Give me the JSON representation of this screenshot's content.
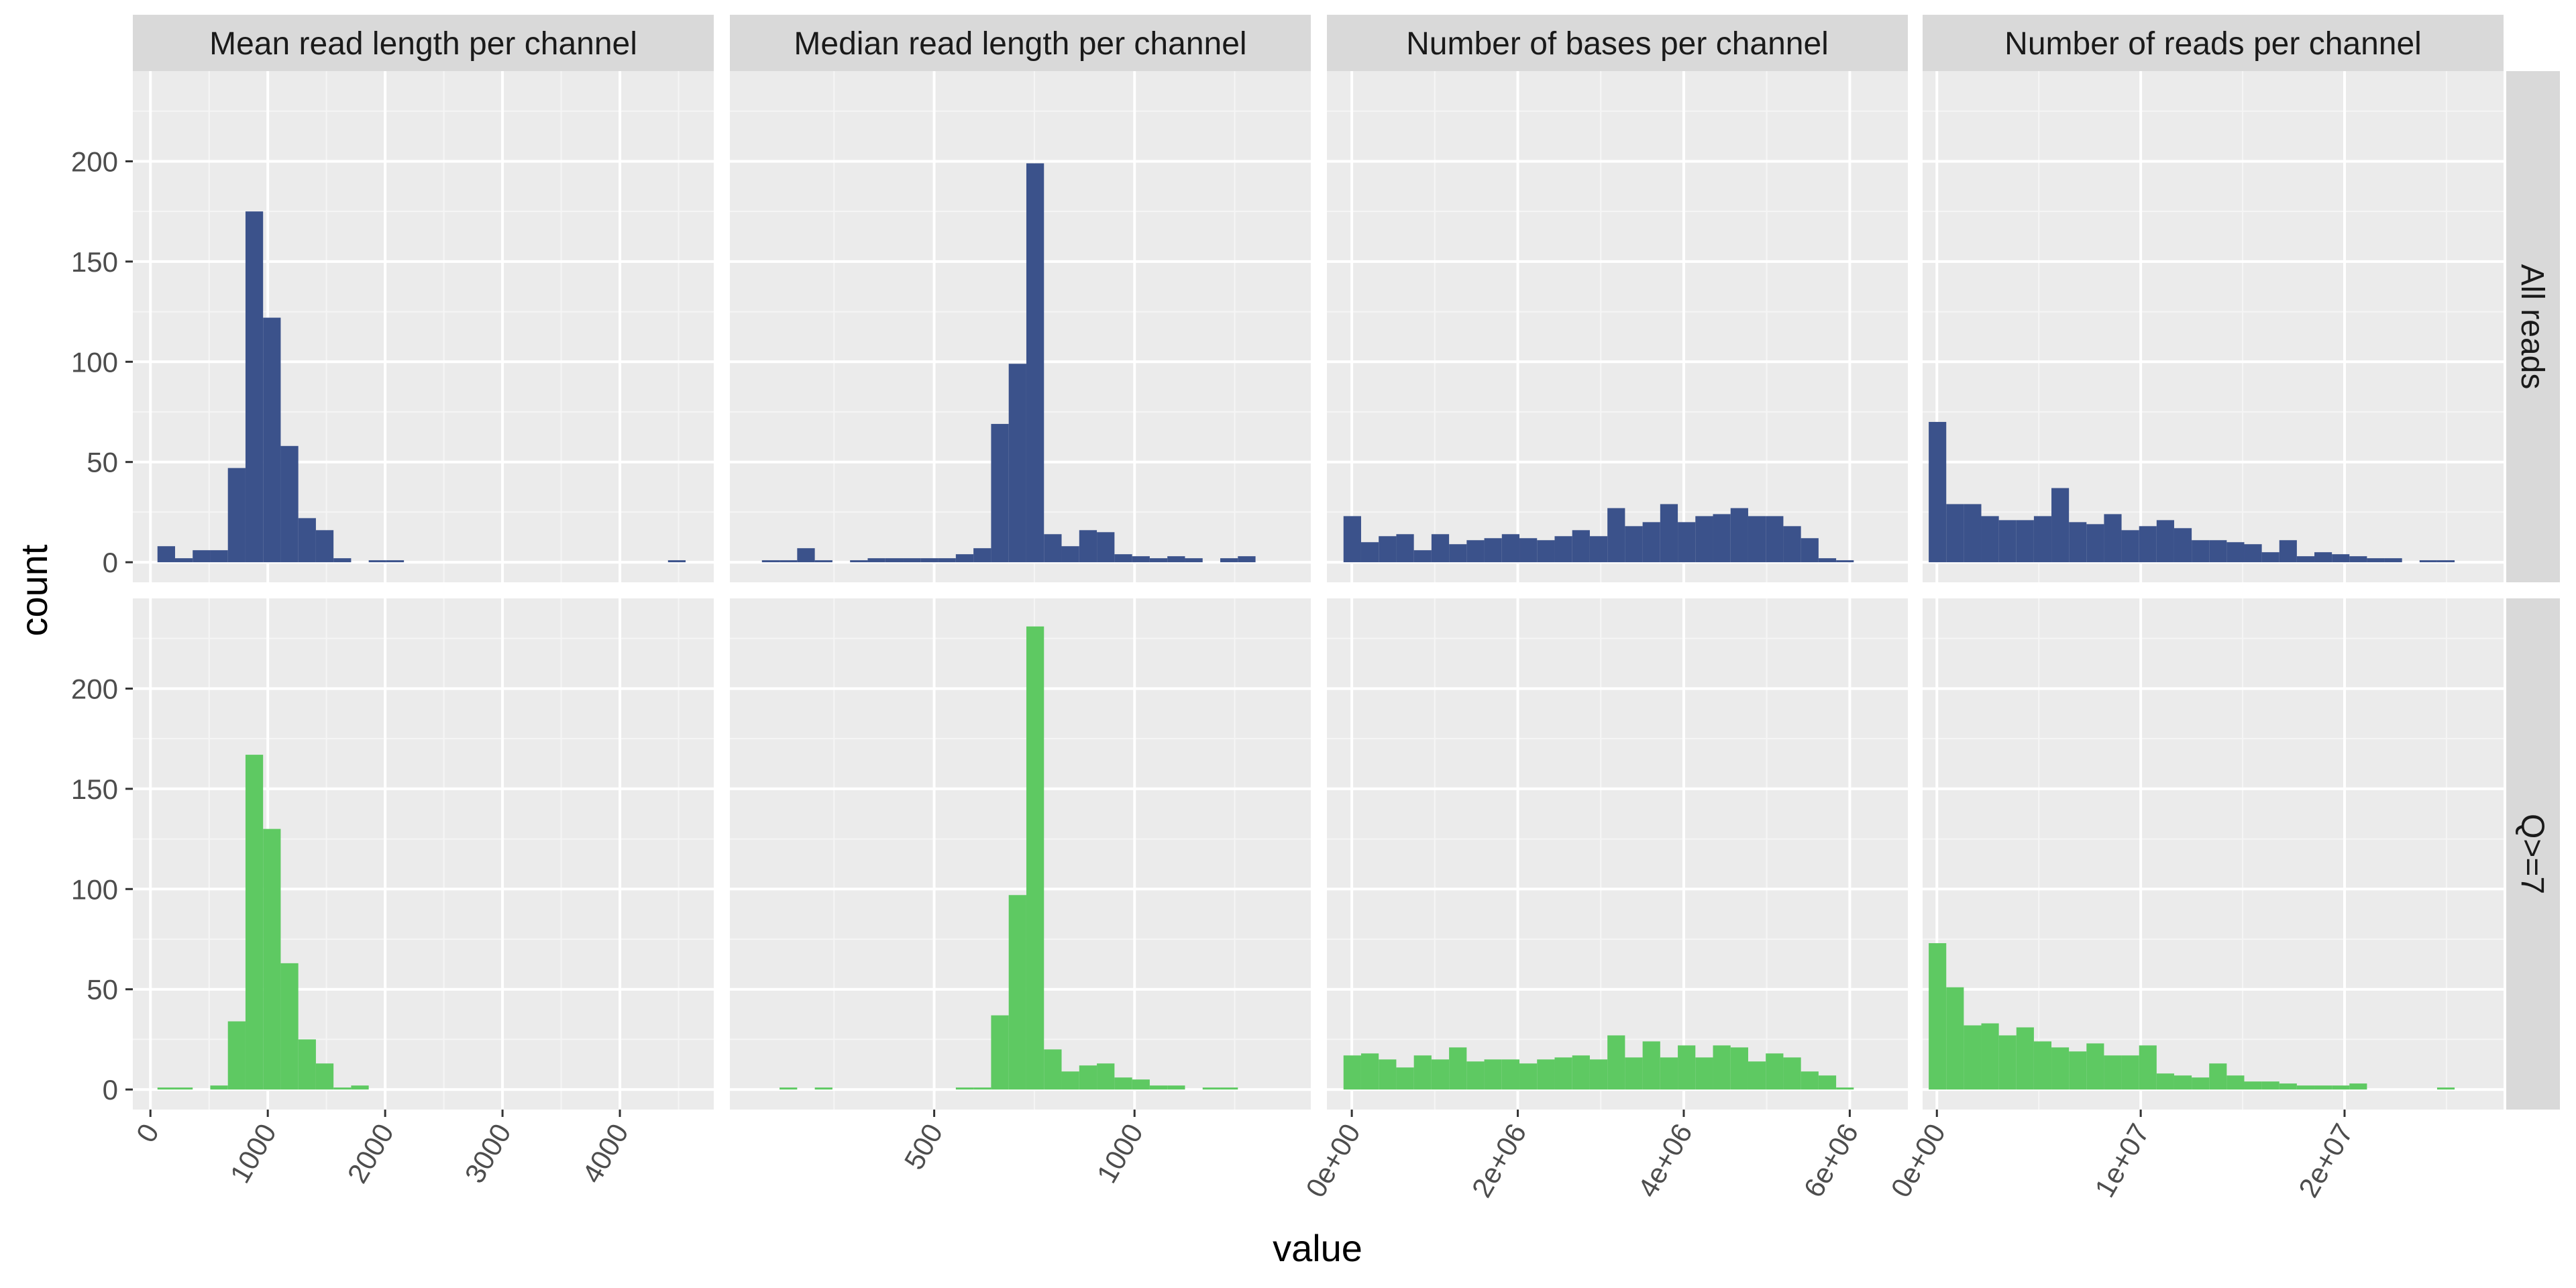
{
  "chart_data": {
    "type": "bar",
    "layout": "facet_grid",
    "xlabel": "value",
    "ylabel": "count",
    "ylim": [
      -10,
      245
    ],
    "y_ticks": [
      0,
      50,
      100,
      150,
      200
    ],
    "grid": true,
    "legend": "none",
    "colors": {
      "All reads": "#3b528b",
      "Q>=7": "#5ec962"
    },
    "rows": [
      {
        "label": "All reads",
        "color": "#3b528b"
      },
      {
        "label": "Q>=7",
        "color": "#5ec962"
      }
    ],
    "panels": [
      {
        "title": "Mean read length per channel",
        "xlim": [
          -150,
          4800
        ],
        "x_ticks": [
          0,
          1000,
          2000,
          3000,
          4000
        ],
        "x_tick_labels": [
          "0",
          "1000",
          "2000",
          "3000",
          "4000"
        ],
        "bin_start": 60,
        "bin_width": 150,
        "series": [
          {
            "name": "All reads",
            "values": [
              8,
              2,
              6,
              6,
              47,
              175,
              122,
              58,
              22,
              16,
              2,
              0,
              1,
              1,
              0,
              0,
              0,
              0,
              0,
              0,
              0,
              0,
              0,
              0,
              0,
              0,
              0,
              0,
              0,
              1
            ]
          },
          {
            "name": "Q>=7",
            "values": [
              1,
              1,
              0,
              2,
              34,
              167,
              130,
              63,
              25,
              13,
              1,
              2,
              0,
              0,
              0,
              0,
              0,
              0,
              0,
              0,
              0,
              0,
              0,
              0,
              0,
              0,
              0,
              0,
              0,
              0
            ]
          }
        ]
      },
      {
        "title": "Median read length per channel",
        "xlim": [
          -10,
          1440
        ],
        "x_ticks": [
          500,
          1000
        ],
        "x_tick_labels": [
          "500",
          "1000"
        ],
        "bin_start": 70,
        "bin_width": 44,
        "series": [
          {
            "name": "All reads",
            "values": [
              1,
              1,
              7,
              1,
              0,
              1,
              2,
              2,
              2,
              2,
              2,
              4,
              7,
              69,
              99,
              199,
              14,
              8,
              16,
              15,
              4,
              3,
              2,
              3,
              2,
              0,
              2,
              3
            ]
          },
          {
            "name": "Q>=7",
            "values": [
              0,
              1,
              0,
              1,
              0,
              0,
              0,
              0,
              0,
              0,
              0,
              1,
              1,
              37,
              97,
              231,
              20,
              9,
              12,
              13,
              6,
              5,
              2,
              2,
              0,
              1,
              1,
              0
            ]
          }
        ]
      },
      {
        "title": "Number of bases per channel",
        "xlim": [
          -300000,
          6700000
        ],
        "x_ticks": [
          0,
          2000000,
          4000000,
          6000000
        ],
        "x_tick_labels": [
          "0e+00",
          "2e+06",
          "4e+06",
          "6e+06"
        ],
        "bin_start": -100000,
        "bin_width": 212000,
        "series": [
          {
            "name": "All reads",
            "values": [
              23,
              10,
              13,
              14,
              6,
              14,
              9,
              11,
              12,
              14,
              12,
              11,
              13,
              16,
              13,
              27,
              18,
              20,
              29,
              20,
              23,
              24,
              27,
              23,
              23,
              18,
              12,
              2,
              1
            ]
          },
          {
            "name": "Q>=7",
            "values": [
              17,
              18,
              15,
              11,
              17,
              15,
              21,
              14,
              15,
              15,
              13,
              15,
              16,
              17,
              15,
              27,
              16,
              24,
              16,
              22,
              16,
              22,
              21,
              14,
              18,
              16,
              9,
              7,
              1
            ]
          }
        ]
      },
      {
        "title": "Number of reads per channel",
        "xlim": [
          -700000,
          27800000
        ],
        "x_ticks": [
          0,
          10000000,
          20000000
        ],
        "x_tick_labels": [
          "0e+00",
          "1e+07",
          "2e+07"
        ],
        "bin_start": -400000,
        "bin_width": 860000,
        "series": [
          {
            "name": "All reads",
            "values": [
              70,
              29,
              29,
              23,
              21,
              21,
              23,
              37,
              20,
              19,
              24,
              16,
              18,
              21,
              17,
              11,
              11,
              10,
              9,
              5,
              11,
              3,
              5,
              4,
              3,
              2,
              2,
              0,
              1,
              1
            ]
          },
          {
            "name": "Q>=7",
            "values": [
              73,
              51,
              32,
              33,
              27,
              31,
              24,
              21,
              19,
              23,
              17,
              17,
              22,
              8,
              7,
              6,
              13,
              7,
              4,
              4,
              3,
              2,
              2,
              2,
              3,
              0,
              0,
              0,
              0,
              1
            ]
          }
        ]
      }
    ]
  }
}
